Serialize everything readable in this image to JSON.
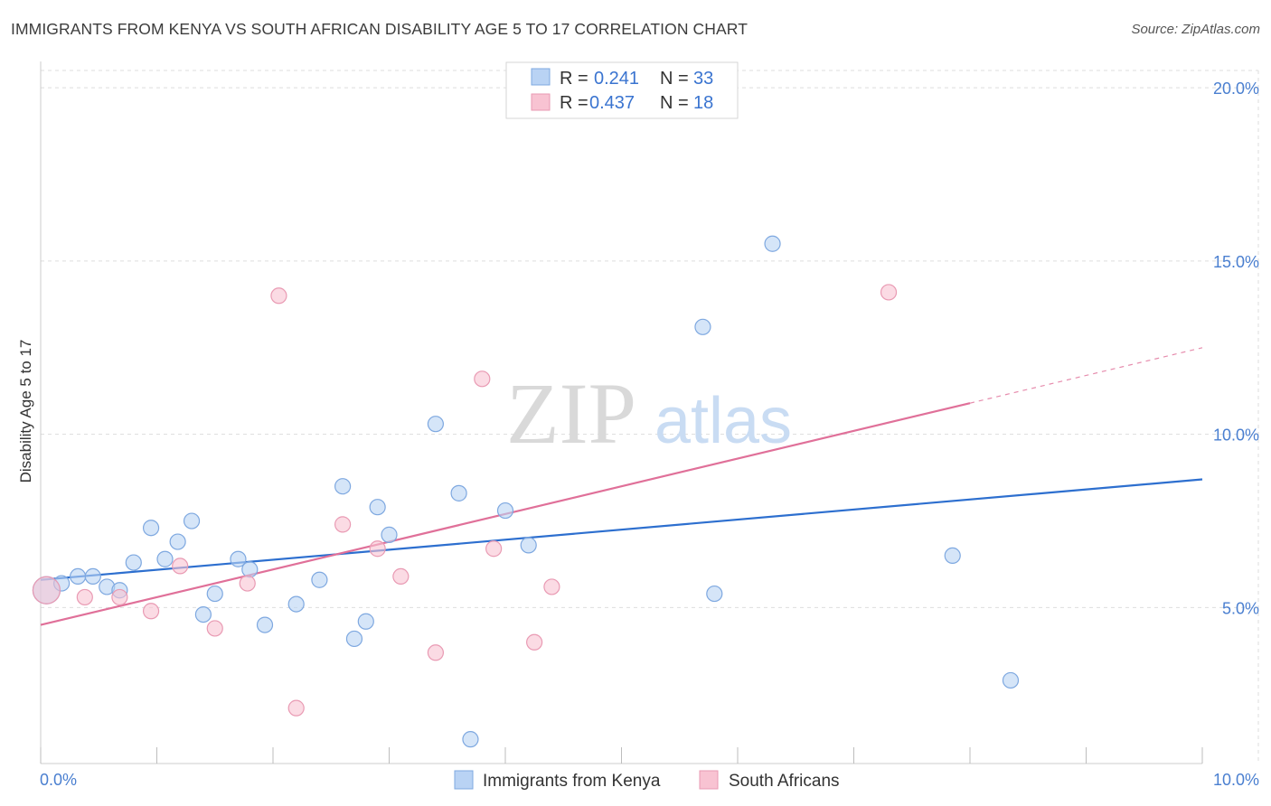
{
  "title": "IMMIGRANTS FROM KENYA VS SOUTH AFRICAN DISABILITY AGE 5 TO 17 CORRELATION CHART",
  "source": "Source: ZipAtlas.com",
  "watermark": {
    "zip": "ZIP",
    "atlas": "atlas"
  },
  "colors": {
    "blue_fill": "#b9d3f4",
    "blue_stroke": "#7ea8e0",
    "blue_line": "#2d6fcf",
    "pink_fill": "#f8c3d2",
    "pink_stroke": "#e99ab3",
    "pink_line": "#e07099",
    "axis_label": "#4a7fd0",
    "grid": "#dddddd"
  },
  "legend": {
    "rows": [
      {
        "r_label": "R =",
        "r_value": "0.241",
        "n_label": "N =",
        "n_value": "33"
      },
      {
        "r_label": "R =",
        "r_value": "0.437",
        "n_label": "N =",
        "n_value": "18"
      }
    ]
  },
  "chart_data": {
    "type": "scatter",
    "title": "IMMIGRANTS FROM KENYA VS SOUTH AFRICAN DISABILITY AGE 5 TO 17 CORRELATION CHART",
    "xlabel": "",
    "ylabel": "Disability Age 5 to 17",
    "xlim": [
      0,
      10
    ],
    "ylim": [
      0.5,
      20.5
    ],
    "y_ticks": [
      5,
      10,
      15,
      20
    ],
    "y_tick_labels": [
      "5.0%",
      "10.0%",
      "15.0%",
      "20.0%"
    ],
    "x_tick_labels": {
      "min": "0.0%",
      "max": "10.0%"
    },
    "grid": true,
    "series": [
      {
        "name": "Immigrants from Kenya",
        "color": "blue",
        "r": 0.241,
        "n": 33,
        "points": [
          [
            0.05,
            5.5
          ],
          [
            0.18,
            5.7
          ],
          [
            0.32,
            5.9
          ],
          [
            0.45,
            5.9
          ],
          [
            0.57,
            5.6
          ],
          [
            0.68,
            5.5
          ],
          [
            0.8,
            6.3
          ],
          [
            0.95,
            7.3
          ],
          [
            1.07,
            6.4
          ],
          [
            1.18,
            6.9
          ],
          [
            1.3,
            7.5
          ],
          [
            1.4,
            4.8
          ],
          [
            1.5,
            5.4
          ],
          [
            1.7,
            6.4
          ],
          [
            1.8,
            6.1
          ],
          [
            1.93,
            4.5
          ],
          [
            2.2,
            5.1
          ],
          [
            2.4,
            5.8
          ],
          [
            2.6,
            8.5
          ],
          [
            2.7,
            4.1
          ],
          [
            2.8,
            4.6
          ],
          [
            2.9,
            7.9
          ],
          [
            3.0,
            7.1
          ],
          [
            3.4,
            10.3
          ],
          [
            3.7,
            1.2
          ],
          [
            3.6,
            8.3
          ],
          [
            4.0,
            7.8
          ],
          [
            4.2,
            6.8
          ],
          [
            5.7,
            13.1
          ],
          [
            5.8,
            5.4
          ],
          [
            6.3,
            15.5
          ],
          [
            7.85,
            6.5
          ],
          [
            8.35,
            2.9
          ]
        ],
        "trend": {
          "x1": 0,
          "y1": 5.8,
          "x2": 10,
          "y2": 8.7
        }
      },
      {
        "name": "South Africans",
        "color": "pink",
        "r": 0.437,
        "n": 18,
        "points": [
          [
            0.05,
            5.5
          ],
          [
            0.38,
            5.3
          ],
          [
            0.68,
            5.3
          ],
          [
            0.95,
            4.9
          ],
          [
            1.2,
            6.2
          ],
          [
            1.5,
            4.4
          ],
          [
            1.78,
            5.7
          ],
          [
            2.05,
            14.0
          ],
          [
            2.2,
            2.1
          ],
          [
            2.6,
            7.4
          ],
          [
            2.9,
            6.7
          ],
          [
            3.1,
            5.9
          ],
          [
            3.4,
            3.7
          ],
          [
            3.8,
            11.6
          ],
          [
            3.9,
            6.7
          ],
          [
            4.25,
            4.0
          ],
          [
            4.4,
            5.6
          ],
          [
            7.3,
            14.1
          ]
        ],
        "trend": {
          "x1": 0,
          "y1": 4.5,
          "x2": 8.0,
          "y2": 10.9
        },
        "trend_dashed": {
          "x1": 8.0,
          "y1": 10.9,
          "x2": 10,
          "y2": 12.5
        }
      }
    ]
  }
}
